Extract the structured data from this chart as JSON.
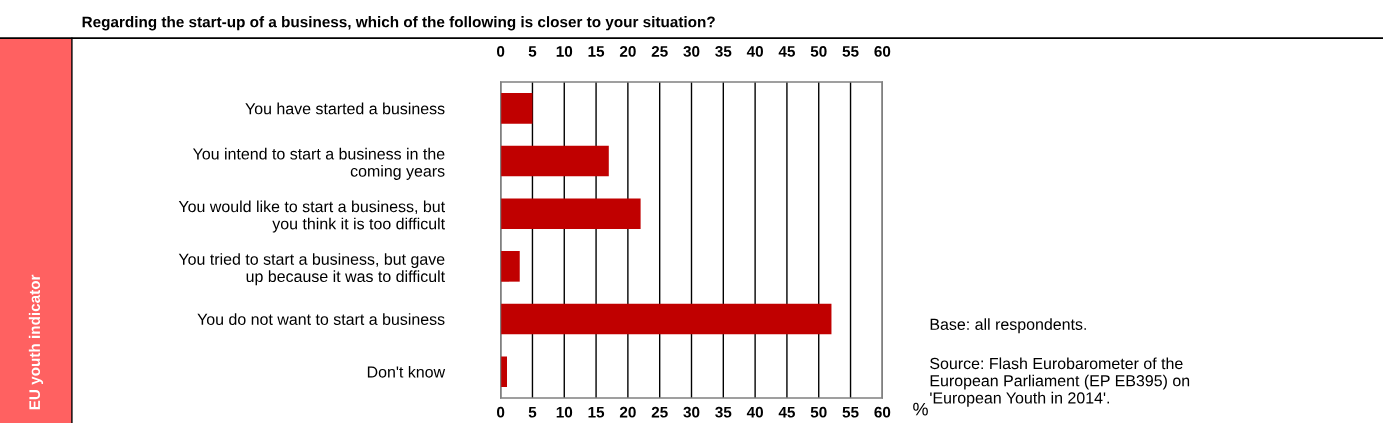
{
  "chart_data": {
    "type": "bar",
    "orientation": "horizontal",
    "title": "Regarding the start-up of a business, which of the following is closer to your situation?",
    "categories": [
      "You have started a business",
      "You intend to start a business in the\ncoming years",
      "You would like to start a business, but\nyou think it is too difficult",
      "You tried to start a business, but gave\nup because it was to difficult",
      "You do not want to start a business",
      "Don't know"
    ],
    "values": [
      5,
      17,
      22,
      3,
      52,
      1
    ],
    "color": "#c00000",
    "xlabel": "%",
    "xlim": [
      0,
      60
    ],
    "xticks": [
      0,
      5,
      10,
      15,
      20,
      25,
      30,
      35,
      40,
      45,
      50,
      55,
      60
    ],
    "x2lim": [
      0,
      60
    ],
    "x2ticks": [
      0,
      5,
      10,
      15,
      20,
      25,
      30,
      35,
      40,
      45,
      50,
      55,
      60
    ],
    "grid": "x",
    "annotations": [
      "EU youth indicator",
      "Base: all respondents.",
      "Source: Flash Eurobarometer of the\nEuropean Parliament (EP EB395) on\n'European Youth in 2014'."
    ]
  }
}
